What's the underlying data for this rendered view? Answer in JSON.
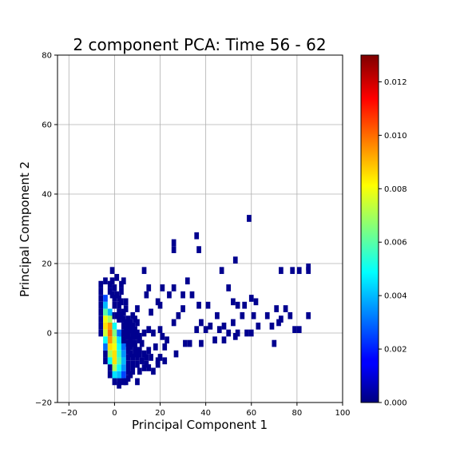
{
  "chart_data": {
    "type": "heatmap",
    "title": "2 component PCA: Time 56 - 62",
    "xlabel": "Principal Component 1",
    "ylabel": "Principal Component 2",
    "xlim": [
      -25,
      100
    ],
    "ylim": [
      -20,
      80
    ],
    "xticks": [
      -20,
      0,
      20,
      40,
      60,
      80,
      100
    ],
    "yticks": [
      -20,
      0,
      20,
      40,
      60,
      80
    ],
    "grid": true,
    "colorbar": {
      "colormap": "jet",
      "range": [
        0,
        0.013
      ],
      "ticks": [
        "0.000",
        "0.002",
        "0.004",
        "0.006",
        "0.008",
        "0.010",
        "0.012"
      ]
    },
    "bin_size": [
      2,
      2
    ],
    "core_bins": [
      {
        "x": -4,
        "y": 10,
        "value": 0.0025
      },
      {
        "x": -4,
        "y": 8,
        "value": 0.004
      },
      {
        "x": -4,
        "y": 6,
        "value": 0.006
      },
      {
        "x": -4,
        "y": 4,
        "value": 0.008
      },
      {
        "x": -4,
        "y": 2,
        "value": 0.0085
      },
      {
        "x": -4,
        "y": 0,
        "value": 0.0075
      },
      {
        "x": -4,
        "y": -2,
        "value": 0.005
      },
      {
        "x": -4,
        "y": -4,
        "value": 0.003
      },
      {
        "x": -2,
        "y": 6,
        "value": 0.004
      },
      {
        "x": -2,
        "y": 4,
        "value": 0.007
      },
      {
        "x": -2,
        "y": 2,
        "value": 0.0095
      },
      {
        "x": -2,
        "y": 0,
        "value": 0.01
      },
      {
        "x": -2,
        "y": -2,
        "value": 0.0095
      },
      {
        "x": -2,
        "y": -4,
        "value": 0.0085
      },
      {
        "x": -2,
        "y": -6,
        "value": 0.007
      },
      {
        "x": -2,
        "y": -8,
        "value": 0.005
      },
      {
        "x": 0,
        "y": 2,
        "value": 0.005
      },
      {
        "x": 0,
        "y": 0,
        "value": 0.0065
      },
      {
        "x": 0,
        "y": -2,
        "value": 0.0075
      },
      {
        "x": 0,
        "y": -4,
        "value": 0.008
      },
      {
        "x": 0,
        "y": -6,
        "value": 0.0085
      },
      {
        "x": 0,
        "y": -8,
        "value": 0.0085
      },
      {
        "x": 0,
        "y": -10,
        "value": 0.007
      },
      {
        "x": 0,
        "y": -12,
        "value": 0.0045
      },
      {
        "x": 2,
        "y": 0,
        "value": 0.003
      },
      {
        "x": 2,
        "y": -2,
        "value": 0.0045
      },
      {
        "x": 2,
        "y": -4,
        "value": 0.005
      },
      {
        "x": 2,
        "y": -6,
        "value": 0.0055
      },
      {
        "x": 2,
        "y": -8,
        "value": 0.006
      },
      {
        "x": 2,
        "y": -10,
        "value": 0.005
      },
      {
        "x": 2,
        "y": -12,
        "value": 0.004
      },
      {
        "x": 4,
        "y": -4,
        "value": 0.003
      },
      {
        "x": 4,
        "y": -6,
        "value": 0.0035
      },
      {
        "x": 4,
        "y": -8,
        "value": 0.004
      },
      {
        "x": 4,
        "y": -10,
        "value": 0.0035
      },
      {
        "x": 4,
        "y": -12,
        "value": 0.0025
      }
    ],
    "sparse_bins": [
      [
        59,
        33
      ],
      [
        26,
        26
      ],
      [
        36,
        28
      ],
      [
        26,
        24
      ],
      [
        37,
        24
      ],
      [
        53,
        21
      ],
      [
        -1,
        18
      ],
      [
        13,
        18
      ],
      [
        47,
        18
      ],
      [
        73,
        18
      ],
      [
        78,
        18
      ],
      [
        81,
        18
      ],
      [
        85,
        18
      ],
      [
        85,
        19
      ],
      [
        4,
        15
      ],
      [
        32,
        15
      ],
      [
        21,
        13
      ],
      [
        26,
        13
      ],
      [
        50,
        13
      ],
      [
        15,
        13
      ],
      [
        14,
        11
      ],
      [
        24,
        11
      ],
      [
        30,
        11
      ],
      [
        34,
        11
      ],
      [
        60,
        10
      ],
      [
        62,
        9
      ],
      [
        19,
        9
      ],
      [
        30,
        7
      ],
      [
        41,
        8
      ],
      [
        54,
        8
      ],
      [
        71,
        7
      ],
      [
        75,
        7
      ],
      [
        5,
        7
      ],
      [
        10,
        7
      ],
      [
        16,
        6
      ],
      [
        20,
        8
      ],
      [
        37,
        8
      ],
      [
        52,
        9
      ],
      [
        57,
        8
      ],
      [
        28,
        5
      ],
      [
        45,
        5
      ],
      [
        56,
        5
      ],
      [
        61,
        5
      ],
      [
        67,
        5
      ],
      [
        77,
        5
      ],
      [
        85,
        5
      ],
      [
        26,
        3
      ],
      [
        38,
        3
      ],
      [
        42,
        2
      ],
      [
        48,
        2
      ],
      [
        52,
        3
      ],
      [
        63,
        2
      ],
      [
        69,
        2
      ],
      [
        72,
        3
      ],
      [
        73,
        4
      ],
      [
        79,
        1
      ],
      [
        81,
        1
      ],
      [
        13,
        0
      ],
      [
        15,
        1
      ],
      [
        17,
        0
      ],
      [
        20,
        1
      ],
      [
        36,
        1
      ],
      [
        40,
        1
      ],
      [
        46,
        1
      ],
      [
        50,
        0
      ],
      [
        54,
        0
      ],
      [
        58,
        0
      ],
      [
        60,
        0
      ],
      [
        9,
        -1
      ],
      [
        11,
        -1
      ],
      [
        21,
        -1
      ],
      [
        23,
        -2
      ],
      [
        31,
        -3
      ],
      [
        33,
        -3
      ],
      [
        38,
        -3
      ],
      [
        44,
        -2
      ],
      [
        48,
        -2
      ],
      [
        53,
        -1
      ],
      [
        70,
        -3
      ],
      [
        12,
        -3
      ],
      [
        15,
        -5
      ],
      [
        18,
        -4
      ],
      [
        22,
        -4
      ],
      [
        27,
        -6
      ],
      [
        6,
        -3
      ],
      [
        8,
        -3
      ],
      [
        6,
        -5
      ],
      [
        9,
        -5
      ],
      [
        11,
        -5
      ],
      [
        13,
        -6
      ],
      [
        6,
        -7
      ],
      [
        8,
        -7
      ],
      [
        10,
        -7
      ],
      [
        16,
        -7
      ],
      [
        20,
        -7
      ],
      [
        22,
        -8
      ],
      [
        19,
        -9
      ],
      [
        14,
        -9
      ],
      [
        6,
        -9
      ],
      [
        8,
        -9
      ],
      [
        10,
        -9
      ],
      [
        6,
        -11
      ],
      [
        8,
        -11
      ],
      [
        2,
        -14
      ],
      [
        5,
        -14
      ],
      [
        10,
        -14
      ],
      [
        7,
        -12
      ],
      [
        -4,
        15
      ],
      [
        -6,
        14
      ],
      [
        -2,
        14
      ],
      [
        3,
        14
      ],
      [
        -6,
        12
      ],
      [
        -2,
        12
      ],
      [
        0,
        13
      ],
      [
        -6,
        10
      ],
      [
        0,
        10
      ],
      [
        2,
        10
      ],
      [
        -6,
        8
      ],
      [
        0,
        8
      ],
      [
        2,
        8
      ],
      [
        3,
        12
      ],
      [
        -6,
        6
      ],
      [
        2,
        6
      ],
      [
        4,
        6
      ],
      [
        -6,
        4
      ],
      [
        2,
        4
      ],
      [
        4,
        4
      ],
      [
        6,
        4
      ],
      [
        8,
        5
      ],
      [
        -6,
        2
      ],
      [
        4,
        2
      ],
      [
        6,
        2
      ],
      [
        8,
        2
      ],
      [
        10,
        3
      ],
      [
        -6,
        0
      ],
      [
        4,
        0
      ],
      [
        6,
        0
      ],
      [
        8,
        0
      ],
      [
        10,
        0
      ],
      [
        4,
        -2
      ],
      [
        6,
        -1
      ],
      [
        8,
        -1
      ],
      [
        10,
        -1
      ],
      [
        -4,
        -6
      ],
      [
        -4,
        -8
      ],
      [
        -2,
        -10
      ],
      [
        -2,
        -12
      ],
      [
        6,
        -13
      ],
      [
        4,
        -14
      ],
      [
        2,
        -15
      ],
      [
        0,
        -14
      ],
      [
        -1,
        15
      ],
      [
        1,
        16
      ],
      [
        -1,
        11
      ],
      [
        1,
        11
      ],
      [
        3,
        9
      ],
      [
        5,
        9
      ],
      [
        -1,
        5
      ],
      [
        1,
        5
      ],
      [
        3,
        5
      ],
      [
        5,
        3
      ],
      [
        7,
        3
      ],
      [
        9,
        4
      ],
      [
        5,
        1
      ],
      [
        7,
        1
      ],
      [
        9,
        1
      ],
      [
        3,
        -1
      ],
      [
        5,
        -1
      ],
      [
        7,
        -2
      ],
      [
        9,
        -3
      ],
      [
        11,
        -2
      ],
      [
        3,
        -3
      ],
      [
        5,
        -3
      ],
      [
        7,
        -4
      ],
      [
        9,
        -4
      ],
      [
        7,
        -6
      ],
      [
        9,
        -6
      ],
      [
        11,
        -6
      ],
      [
        12,
        -8
      ],
      [
        14,
        -7
      ],
      [
        11,
        -11
      ],
      [
        13,
        -10
      ],
      [
        15,
        -10
      ],
      [
        17,
        -11
      ],
      [
        19,
        -8
      ]
    ]
  }
}
